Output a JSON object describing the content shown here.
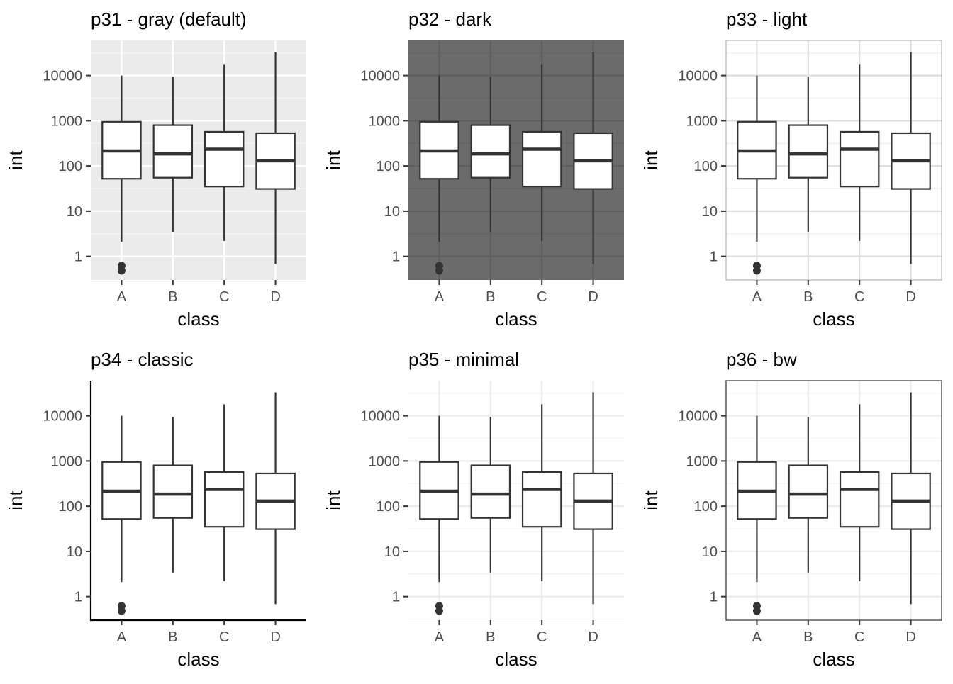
{
  "chart_data": [
    {
      "type": "boxplot",
      "theme": "gray",
      "title": "p31 - gray (default)",
      "xlabel": "class",
      "ylabel": "int",
      "y_scale": "log10",
      "ylim": [
        0.3,
        60000
      ],
      "y_ticks": [
        1,
        10,
        100,
        1000,
        10000
      ],
      "y_tick_labels": [
        "1",
        "10",
        "100",
        "1000",
        "10000"
      ],
      "categories": [
        "A",
        "B",
        "C",
        "D"
      ],
      "boxes": [
        {
          "category": "A",
          "lower_whisker": 2.1,
          "q1": 52,
          "median": 215,
          "q3": 950,
          "upper_whisker": 10000,
          "outliers": [
            0.62,
            0.48
          ]
        },
        {
          "category": "B",
          "lower_whisker": 3.4,
          "q1": 55,
          "median": 185,
          "q3": 800,
          "upper_whisker": 9400,
          "outliers": []
        },
        {
          "category": "C",
          "lower_whisker": 2.2,
          "q1": 35,
          "median": 235,
          "q3": 570,
          "upper_whisker": 18000,
          "outliers": []
        },
        {
          "category": "D",
          "lower_whisker": 0.68,
          "q1": 31,
          "median": 130,
          "q3": 530,
          "upper_whisker": 33000,
          "outliers": []
        }
      ],
      "colors": {
        "panel": "#ebebeb",
        "grid_major": "#ffffff",
        "grid_minor": "#f5f5f5",
        "box_fill": "#ffffff",
        "box_line": "#333333"
      },
      "grid": true
    },
    {
      "type": "boxplot",
      "theme": "dark",
      "title": "p32 - dark",
      "xlabel": "class",
      "ylabel": "int",
      "y_scale": "log10",
      "ylim": [
        0.3,
        60000
      ],
      "y_ticks": [
        1,
        10,
        100,
        1000,
        10000
      ],
      "y_tick_labels": [
        "1",
        "10",
        "100",
        "1000",
        "10000"
      ],
      "categories": [
        "A",
        "B",
        "C",
        "D"
      ],
      "boxes": [
        {
          "category": "A",
          "lower_whisker": 2.1,
          "q1": 52,
          "median": 215,
          "q3": 950,
          "upper_whisker": 10000,
          "outliers": [
            0.62,
            0.48
          ]
        },
        {
          "category": "B",
          "lower_whisker": 3.4,
          "q1": 55,
          "median": 185,
          "q3": 800,
          "upper_whisker": 9400,
          "outliers": []
        },
        {
          "category": "C",
          "lower_whisker": 2.2,
          "q1": 35,
          "median": 235,
          "q3": 570,
          "upper_whisker": 18000,
          "outliers": []
        },
        {
          "category": "D",
          "lower_whisker": 0.68,
          "q1": 31,
          "median": 130,
          "q3": 530,
          "upper_whisker": 33000,
          "outliers": []
        }
      ],
      "colors": {
        "panel": "#6b6b6b",
        "grid_major": "#5e5e5e",
        "grid_minor": "#646464",
        "box_fill": "#ffffff",
        "box_line": "#333333"
      },
      "grid": true
    },
    {
      "type": "boxplot",
      "theme": "light",
      "title": "p33 - light",
      "xlabel": "class",
      "ylabel": "int",
      "y_scale": "log10",
      "ylim": [
        0.3,
        60000
      ],
      "y_ticks": [
        1,
        10,
        100,
        1000,
        10000
      ],
      "y_tick_labels": [
        "1",
        "10",
        "100",
        "1000",
        "10000"
      ],
      "categories": [
        "A",
        "B",
        "C",
        "D"
      ],
      "boxes": [
        {
          "category": "A",
          "lower_whisker": 2.1,
          "q1": 52,
          "median": 215,
          "q3": 950,
          "upper_whisker": 10000,
          "outliers": [
            0.62,
            0.48
          ]
        },
        {
          "category": "B",
          "lower_whisker": 3.4,
          "q1": 55,
          "median": 185,
          "q3": 800,
          "upper_whisker": 9400,
          "outliers": []
        },
        {
          "category": "C",
          "lower_whisker": 2.2,
          "q1": 35,
          "median": 235,
          "q3": 570,
          "upper_whisker": 18000,
          "outliers": []
        },
        {
          "category": "D",
          "lower_whisker": 0.68,
          "q1": 31,
          "median": 130,
          "q3": 530,
          "upper_whisker": 33000,
          "outliers": []
        }
      ],
      "colors": {
        "panel": "#ffffff",
        "grid_major": "#dedede",
        "grid_minor": "#efefef",
        "border": "#b3b3b3",
        "box_fill": "#ffffff",
        "box_line": "#333333"
      },
      "grid": true
    },
    {
      "type": "boxplot",
      "theme": "classic",
      "title": "p34 - classic",
      "xlabel": "class",
      "ylabel": "int",
      "y_scale": "log10",
      "ylim": [
        0.3,
        60000
      ],
      "y_ticks": [
        1,
        10,
        100,
        1000,
        10000
      ],
      "y_tick_labels": [
        "1",
        "10",
        "100",
        "1000",
        "10000"
      ],
      "categories": [
        "A",
        "B",
        "C",
        "D"
      ],
      "boxes": [
        {
          "category": "A",
          "lower_whisker": 2.1,
          "q1": 52,
          "median": 215,
          "q3": 950,
          "upper_whisker": 10000,
          "outliers": [
            0.62,
            0.48
          ]
        },
        {
          "category": "B",
          "lower_whisker": 3.4,
          "q1": 55,
          "median": 185,
          "q3": 800,
          "upper_whisker": 9400,
          "outliers": []
        },
        {
          "category": "C",
          "lower_whisker": 2.2,
          "q1": 35,
          "median": 235,
          "q3": 570,
          "upper_whisker": 18000,
          "outliers": []
        },
        {
          "category": "D",
          "lower_whisker": 0.68,
          "q1": 31,
          "median": 130,
          "q3": 530,
          "upper_whisker": 33000,
          "outliers": []
        }
      ],
      "colors": {
        "panel": "#ffffff",
        "axis_line": "#000000",
        "box_fill": "#ffffff",
        "box_line": "#333333"
      },
      "grid": false
    },
    {
      "type": "boxplot",
      "theme": "minimal",
      "title": "p35 - minimal",
      "xlabel": "class",
      "ylabel": "int",
      "y_scale": "log10",
      "ylim": [
        0.3,
        60000
      ],
      "y_ticks": [
        1,
        10,
        100,
        1000,
        10000
      ],
      "y_tick_labels": [
        "1",
        "10",
        "100",
        "1000",
        "10000"
      ],
      "categories": [
        "A",
        "B",
        "C",
        "D"
      ],
      "boxes": [
        {
          "category": "A",
          "lower_whisker": 2.1,
          "q1": 52,
          "median": 215,
          "q3": 950,
          "upper_whisker": 10000,
          "outliers": [
            0.62,
            0.48
          ]
        },
        {
          "category": "B",
          "lower_whisker": 3.4,
          "q1": 55,
          "median": 185,
          "q3": 800,
          "upper_whisker": 9400,
          "outliers": []
        },
        {
          "category": "C",
          "lower_whisker": 2.2,
          "q1": 35,
          "median": 235,
          "q3": 570,
          "upper_whisker": 18000,
          "outliers": []
        },
        {
          "category": "D",
          "lower_whisker": 0.68,
          "q1": 31,
          "median": 130,
          "q3": 530,
          "upper_whisker": 33000,
          "outliers": []
        }
      ],
      "colors": {
        "panel": "#ffffff",
        "grid_major": "#ebebeb",
        "grid_minor": "#f3f3f3",
        "box_fill": "#ffffff",
        "box_line": "#333333"
      },
      "grid": true
    },
    {
      "type": "boxplot",
      "theme": "bw",
      "title": "p36 - bw",
      "xlabel": "class",
      "ylabel": "int",
      "y_scale": "log10",
      "ylim": [
        0.3,
        60000
      ],
      "y_ticks": [
        1,
        10,
        100,
        1000,
        10000
      ],
      "y_tick_labels": [
        "1",
        "10",
        "100",
        "1000",
        "10000"
      ],
      "categories": [
        "A",
        "B",
        "C",
        "D"
      ],
      "boxes": [
        {
          "category": "A",
          "lower_whisker": 2.1,
          "q1": 52,
          "median": 215,
          "q3": 950,
          "upper_whisker": 10000,
          "outliers": [
            0.62,
            0.48
          ]
        },
        {
          "category": "B",
          "lower_whisker": 3.4,
          "q1": 55,
          "median": 185,
          "q3": 800,
          "upper_whisker": 9400,
          "outliers": []
        },
        {
          "category": "C",
          "lower_whisker": 2.2,
          "q1": 35,
          "median": 235,
          "q3": 570,
          "upper_whisker": 18000,
          "outliers": []
        },
        {
          "category": "D",
          "lower_whisker": 0.68,
          "q1": 31,
          "median": 130,
          "q3": 530,
          "upper_whisker": 33000,
          "outliers": []
        }
      ],
      "colors": {
        "panel": "#ffffff",
        "grid_major": "#ebebeb",
        "grid_minor": "#f5f5f5",
        "border": "#333333",
        "box_fill": "#ffffff",
        "box_line": "#333333"
      },
      "grid": true
    }
  ]
}
